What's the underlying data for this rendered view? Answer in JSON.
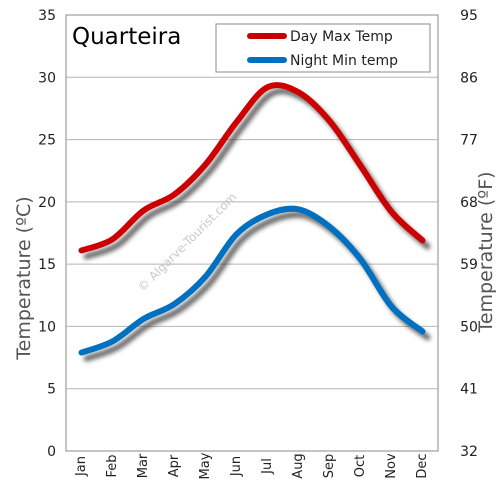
{
  "chart_data": {
    "type": "line",
    "title": "Quarteira",
    "watermark": "© Algarve-Tourist.com",
    "categories": [
      "Jan",
      "Feb",
      "Mar",
      "Apr",
      "May",
      "Jun",
      "Jul",
      "Aug",
      "Sep",
      "Oct",
      "Nov",
      "Dec"
    ],
    "series": [
      {
        "name": "Day Max Temp",
        "color": "#cc0000",
        "values": [
          16.1,
          17.0,
          19.3,
          20.6,
          23.0,
          26.4,
          29.2,
          28.8,
          26.5,
          22.9,
          19.2,
          16.9
        ]
      },
      {
        "name": "Night Min temp",
        "color": "#0070c0",
        "values": [
          7.9,
          8.8,
          10.6,
          11.8,
          14.0,
          17.4,
          19.0,
          19.4,
          18.0,
          15.4,
          11.6,
          9.6
        ]
      }
    ],
    "ylabel": "Temperature  (ºC)",
    "y2label": "Temperature (ºF)",
    "ylim": [
      0,
      35
    ],
    "yticks": [
      "0",
      "5",
      "10",
      "15",
      "20",
      "25",
      "30",
      "35"
    ],
    "y2ticks": [
      "32",
      "41",
      "50",
      "59",
      "68",
      "77",
      "86",
      "95"
    ],
    "grid": true,
    "legend_position": "top-right"
  }
}
